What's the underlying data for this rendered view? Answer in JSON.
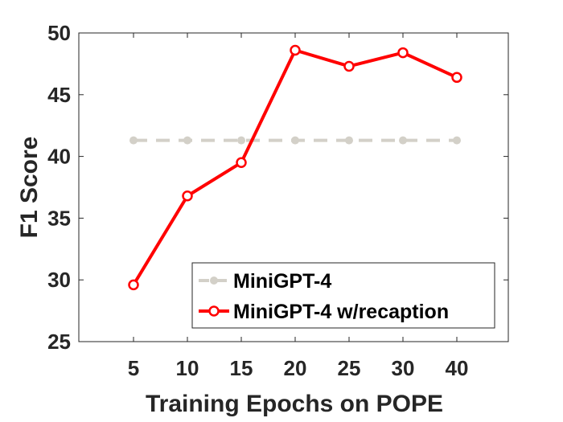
{
  "chart_data": {
    "type": "line",
    "title": "",
    "xlabel": "Training Epochs on POPE",
    "ylabel": "F1 Score",
    "categories": [
      "5",
      "10",
      "15",
      "20",
      "25",
      "30",
      "40"
    ],
    "ylim": [
      25,
      50
    ],
    "yticks": [
      25,
      30,
      35,
      40,
      45,
      50
    ],
    "grid": false,
    "legend_position": "bottom-right",
    "series": [
      {
        "name": "MiniGPT-4",
        "values": [
          41.3,
          41.3,
          41.3,
          41.3,
          41.3,
          41.3,
          41.3
        ],
        "color": "#d3d0c8",
        "style": "dashed",
        "marker": "filled-circle"
      },
      {
        "name": "MiniGPT-4 w/recaption",
        "values": [
          29.6,
          36.8,
          39.5,
          48.6,
          47.3,
          48.4,
          46.4
        ],
        "color": "#ff0000",
        "style": "solid",
        "marker": "open-circle"
      }
    ]
  }
}
